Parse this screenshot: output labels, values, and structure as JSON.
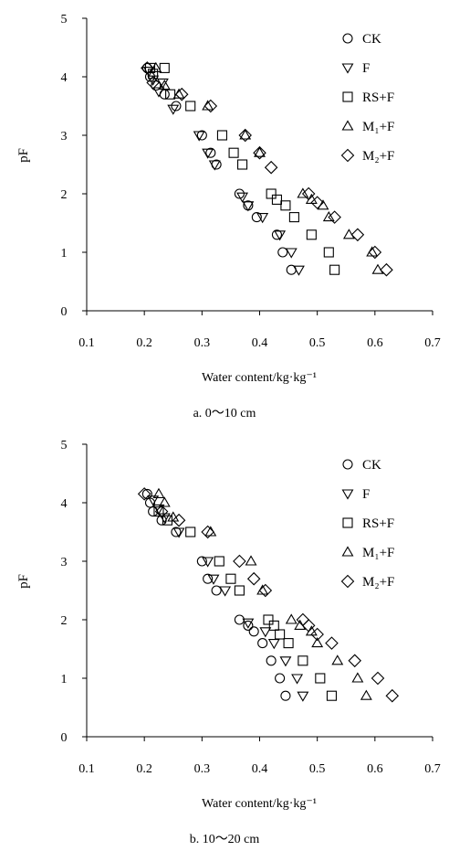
{
  "charts": [
    {
      "panel_label": "a. 0～10 cm",
      "xlabel": "Water content/kg·kg⁻¹",
      "ylabel": "pF"
    },
    {
      "panel_label": "b. 10～20 cm",
      "xlabel": "Water content/kg·kg⁻¹",
      "ylabel": "pF"
    }
  ],
  "chart_data": [
    {
      "type": "scatter",
      "title": "a. 0～10 cm",
      "xlabel": "Water content/kg·kg⁻¹",
      "ylabel": "pF",
      "xlim": [
        0.1,
        0.7
      ],
      "ylim": [
        0,
        5
      ],
      "xticks": [
        "0.1",
        "0.2",
        "0.3",
        "0.4",
        "0.5",
        "0.6",
        "0.7"
      ],
      "yticks": [
        "0",
        "1",
        "2",
        "3",
        "4",
        "5"
      ],
      "grid": false,
      "legend_position": "top-right",
      "series": [
        {
          "name": "CK",
          "marker": "circle",
          "x": [
            0.205,
            0.21,
            0.22,
            0.235,
            0.255,
            0.3,
            0.315,
            0.325,
            0.365,
            0.38,
            0.395,
            0.43,
            0.44,
            0.455
          ],
          "y": [
            4.15,
            4.0,
            3.85,
            3.7,
            3.5,
            3.0,
            2.7,
            2.5,
            2.0,
            1.8,
            1.6,
            1.3,
            1.0,
            0.7
          ]
        },
        {
          "name": "F",
          "marker": "triangle-down",
          "x": [
            0.208,
            0.215,
            0.225,
            0.232,
            0.25,
            0.295,
            0.31,
            0.322,
            0.37,
            0.38,
            0.405,
            0.435,
            0.455,
            0.468
          ],
          "y": [
            4.1,
            3.95,
            3.75,
            3.9,
            3.45,
            3.0,
            2.7,
            2.5,
            1.95,
            1.8,
            1.6,
            1.3,
            1.0,
            0.7
          ]
        },
        {
          "name": "RS+F",
          "marker": "square",
          "x": [
            0.21,
            0.215,
            0.235,
            0.245,
            0.28,
            0.335,
            0.355,
            0.37,
            0.42,
            0.43,
            0.445,
            0.46,
            0.49,
            0.52,
            0.53
          ],
          "y": [
            4.15,
            4.05,
            4.15,
            3.7,
            3.5,
            3.0,
            2.7,
            2.5,
            2.0,
            1.9,
            1.8,
            1.6,
            1.3,
            1.0,
            0.7
          ]
        },
        {
          "name": "M₁+F",
          "marker": "triangle-up",
          "x": [
            0.22,
            0.235,
            0.26,
            0.31,
            0.375,
            0.4,
            0.475,
            0.49,
            0.51,
            0.52,
            0.555,
            0.595,
            0.605
          ],
          "y": [
            4.15,
            3.85,
            3.7,
            3.5,
            3.0,
            2.7,
            2.0,
            1.9,
            1.8,
            1.6,
            1.3,
            1.0,
            0.7
          ]
        },
        {
          "name": "M₂+F",
          "marker": "diamond",
          "x": [
            0.205,
            0.215,
            0.265,
            0.315,
            0.375,
            0.4,
            0.42,
            0.485,
            0.5,
            0.53,
            0.57,
            0.6,
            0.62
          ],
          "y": [
            4.15,
            3.9,
            3.7,
            3.5,
            3.0,
            2.7,
            2.45,
            2.0,
            1.85,
            1.6,
            1.3,
            1.0,
            0.7
          ]
        }
      ]
    },
    {
      "type": "scatter",
      "title": "b. 10～20 cm",
      "xlabel": "Water content/kg·kg⁻¹",
      "ylabel": "pF",
      "xlim": [
        0.1,
        0.7
      ],
      "ylim": [
        0,
        5
      ],
      "xticks": [
        "0.1",
        "0.2",
        "0.3",
        "0.4",
        "0.5",
        "0.6",
        "0.7"
      ],
      "yticks": [
        "0",
        "1",
        "2",
        "3",
        "4",
        "5"
      ],
      "grid": false,
      "legend_position": "top-right",
      "series": [
        {
          "name": "CK",
          "marker": "circle",
          "x": [
            0.205,
            0.21,
            0.215,
            0.23,
            0.255,
            0.3,
            0.31,
            0.325,
            0.365,
            0.38,
            0.39,
            0.405,
            0.42,
            0.435,
            0.445
          ],
          "y": [
            4.15,
            4.0,
            3.85,
            3.7,
            3.5,
            3.0,
            2.7,
            2.5,
            2.0,
            1.9,
            1.8,
            1.6,
            1.3,
            1.0,
            0.7
          ]
        },
        {
          "name": "F",
          "marker": "triangle-down",
          "x": [
            0.215,
            0.225,
            0.235,
            0.26,
            0.31,
            0.32,
            0.34,
            0.38,
            0.41,
            0.425,
            0.445,
            0.465,
            0.475
          ],
          "y": [
            4.05,
            3.9,
            3.75,
            3.5,
            3.0,
            2.7,
            2.5,
            1.95,
            1.8,
            1.6,
            1.3,
            1.0,
            0.7
          ]
        },
        {
          "name": "RS+F",
          "marker": "square",
          "x": [
            0.225,
            0.24,
            0.28,
            0.33,
            0.35,
            0.365,
            0.415,
            0.425,
            0.435,
            0.45,
            0.475,
            0.505,
            0.525
          ],
          "y": [
            3.85,
            3.7,
            3.5,
            3.0,
            2.7,
            2.5,
            2.0,
            1.9,
            1.75,
            1.6,
            1.3,
            1.0,
            0.7
          ]
        },
        {
          "name": "M₁+F",
          "marker": "triangle-up",
          "x": [
            0.225,
            0.235,
            0.25,
            0.315,
            0.385,
            0.405,
            0.455,
            0.47,
            0.49,
            0.5,
            0.535,
            0.57,
            0.585
          ],
          "y": [
            4.15,
            4.0,
            3.75,
            3.5,
            3.0,
            2.5,
            2.0,
            1.9,
            1.8,
            1.6,
            1.3,
            1.0,
            0.7
          ]
        },
        {
          "name": "M₂+F",
          "marker": "diamond",
          "x": [
            0.2,
            0.23,
            0.26,
            0.31,
            0.365,
            0.39,
            0.41,
            0.475,
            0.485,
            0.5,
            0.525,
            0.565,
            0.605,
            0.63
          ],
          "y": [
            4.15,
            3.85,
            3.7,
            3.5,
            3.0,
            2.7,
            2.5,
            2.0,
            1.9,
            1.75,
            1.6,
            1.3,
            1.0,
            0.7
          ]
        }
      ]
    }
  ]
}
